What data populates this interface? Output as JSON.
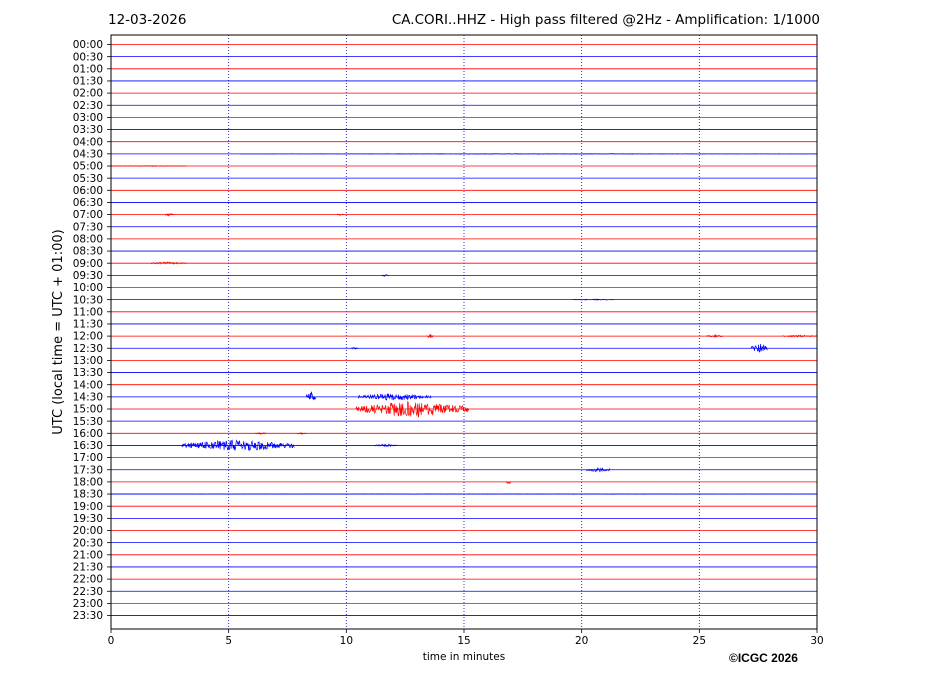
{
  "header": {
    "date": "12-03-2026",
    "title": "CA.CORI..HHZ - High pass filtered @2Hz - Amplification: 1/1000"
  },
  "footer": {
    "copyright": "©ICGC 2026"
  },
  "chart_data": {
    "type": "line",
    "title": "CA.CORI..HHZ - High pass filtered @2Hz - Amplification: 1/1000",
    "xlabel": "time in minutes",
    "ylabel": "UTC (local time = UTC + 01:00)",
    "xlim": [
      0,
      30
    ],
    "xticks": [
      0,
      5,
      10,
      15,
      20,
      25,
      30
    ],
    "x_gridlines": [
      5,
      10,
      15,
      20,
      25
    ],
    "grid": "vertical dotted",
    "row_labels": [
      "00:00",
      "00:30",
      "01:00",
      "01:30",
      "02:00",
      "02:30",
      "03:00",
      "03:30",
      "04:00",
      "04:30",
      "05:00",
      "05:30",
      "06:00",
      "06:30",
      "07:00",
      "07:30",
      "08:00",
      "08:30",
      "09:00",
      "09:30",
      "10:00",
      "10:30",
      "11:00",
      "11:30",
      "12:00",
      "12:30",
      "13:00",
      "13:30",
      "14:00",
      "14:30",
      "15:00",
      "15:30",
      "16:00",
      "16:30",
      "17:00",
      "17:30",
      "18:00",
      "18:30",
      "19:00",
      "19:30",
      "20:00",
      "20:30",
      "21:00",
      "21:30",
      "22:00",
      "22:30",
      "23:00",
      "23:30"
    ],
    "colors": {
      "even_rows": "#ff0000",
      "odd_rows": "#0000ff"
    },
    "events": [
      {
        "row": "04:30",
        "x_start": 5.5,
        "x_end": 30,
        "amplitude": 0.3
      },
      {
        "row": "05:00",
        "x_start": 0,
        "x_end": 3.2,
        "amplitude": 0.4
      },
      {
        "row": "07:00",
        "x_start": 2.3,
        "x_end": 2.7,
        "amplitude": 1.2
      },
      {
        "row": "07:00",
        "x_start": 9.6,
        "x_end": 9.9,
        "amplitude": 1.0
      },
      {
        "row": "09:00",
        "x_start": 1.7,
        "x_end": 3.2,
        "amplitude": 1.2
      },
      {
        "row": "09:30",
        "x_start": 11.5,
        "x_end": 11.8,
        "amplitude": 1.0
      },
      {
        "row": "10:30",
        "x_start": 19.6,
        "x_end": 21.4,
        "amplitude": 0.6
      },
      {
        "row": "12:00",
        "x_start": 13.4,
        "x_end": 13.7,
        "amplitude": 2.5
      },
      {
        "row": "12:00",
        "x_start": 25.3,
        "x_end": 26.0,
        "amplitude": 1.2
      },
      {
        "row": "12:00",
        "x_start": 28.5,
        "x_end": 30,
        "amplitude": 0.9
      },
      {
        "row": "12:30",
        "x_start": 10.2,
        "x_end": 10.5,
        "amplitude": 1.0
      },
      {
        "row": "12:30",
        "x_start": 27.2,
        "x_end": 27.9,
        "amplitude": 4.5
      },
      {
        "row": "14:30",
        "x_start": 8.3,
        "x_end": 8.7,
        "amplitude": 6.0
      },
      {
        "row": "14:30",
        "x_start": 10.5,
        "x_end": 13.6,
        "amplitude": 3.5
      },
      {
        "row": "15:00",
        "x_start": 10.4,
        "x_end": 15.2,
        "amplitude": 8.0
      },
      {
        "row": "16:00",
        "x_start": 6.1,
        "x_end": 6.6,
        "amplitude": 1.0
      },
      {
        "row": "16:00",
        "x_start": 7.9,
        "x_end": 8.3,
        "amplitude": 1.0
      },
      {
        "row": "16:30",
        "x_start": 3.0,
        "x_end": 7.8,
        "amplitude": 5.5
      },
      {
        "row": "16:30",
        "x_start": 11.2,
        "x_end": 12.2,
        "amplitude": 1.2
      },
      {
        "row": "17:30",
        "x_start": 20.2,
        "x_end": 21.2,
        "amplitude": 2.2
      },
      {
        "row": "18:00",
        "x_start": 16.8,
        "x_end": 17.0,
        "amplitude": 2.0
      },
      {
        "row": "18:30",
        "x_start": 0,
        "x_end": 30,
        "amplitude": 0.25
      }
    ]
  }
}
